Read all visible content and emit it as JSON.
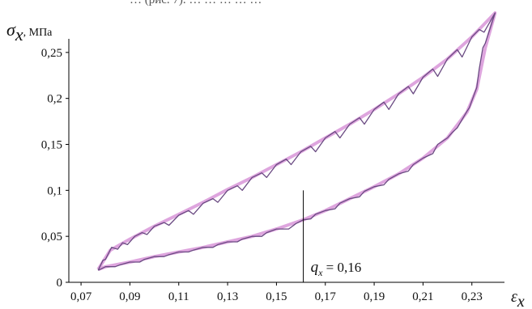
{
  "header_fragment": "… (рис. 7). … … … … …",
  "chart_data": {
    "type": "line",
    "title": "",
    "ylabel_symbol": "σ",
    "ylabel_sub": "x",
    "ylabel_unit": ", МПа",
    "xlabel_symbol": "ε",
    "xlabel_sub": "x",
    "xlim": [
      0.065,
      0.245
    ],
    "ylim": [
      0,
      0.3
    ],
    "x_ticks": [
      "0,07",
      "0,09",
      "0,11",
      "0,13",
      "0,15",
      "0,17",
      "0,19",
      "0,21",
      "0,23"
    ],
    "x_tick_values": [
      0.07,
      0.09,
      0.11,
      0.13,
      0.15,
      0.17,
      0.19,
      0.21,
      0.23
    ],
    "y_ticks": [
      "0",
      "0,05",
      "0,1",
      "0,15",
      "0,2",
      "0,25"
    ],
    "y_tick_values": [
      0,
      0.05,
      0.1,
      0.15,
      0.2,
      0.25
    ],
    "grid": false,
    "annotation": {
      "x": 0.161,
      "y_top": 0.1,
      "symbol": "q",
      "sub": "x",
      "text": " = 0,16"
    },
    "series": [
      {
        "color": "#d895d8",
        "width": 4,
        "values": [
          [
            0.077,
            0.014
          ],
          [
            0.082,
            0.035
          ],
          [
            0.09,
            0.047
          ],
          [
            0.1,
            0.061
          ],
          [
            0.11,
            0.074
          ],
          [
            0.12,
            0.087
          ],
          [
            0.13,
            0.101
          ],
          [
            0.14,
            0.114
          ],
          [
            0.15,
            0.128
          ],
          [
            0.16,
            0.142
          ],
          [
            0.17,
            0.157
          ],
          [
            0.18,
            0.172
          ],
          [
            0.19,
            0.188
          ],
          [
            0.2,
            0.205
          ],
          [
            0.21,
            0.223
          ],
          [
            0.22,
            0.243
          ],
          [
            0.23,
            0.267
          ],
          [
            0.2395,
            0.293
          ],
          [
            0.2355,
            0.255
          ],
          [
            0.232,
            0.21
          ],
          [
            0.228,
            0.185
          ],
          [
            0.22,
            0.157
          ],
          [
            0.21,
            0.135
          ],
          [
            0.2,
            0.118
          ],
          [
            0.19,
            0.104
          ],
          [
            0.18,
            0.091
          ],
          [
            0.17,
            0.078
          ],
          [
            0.161,
            0.068
          ],
          [
            0.15,
            0.058
          ],
          [
            0.14,
            0.05
          ],
          [
            0.13,
            0.044
          ],
          [
            0.12,
            0.038
          ],
          [
            0.11,
            0.033
          ],
          [
            0.1,
            0.028
          ],
          [
            0.09,
            0.022
          ],
          [
            0.08,
            0.017
          ],
          [
            0.077,
            0.014
          ]
        ]
      },
      {
        "color": "#6a4a82",
        "width": 1.3,
        "values": [
          [
            0.077,
            0.013
          ],
          [
            0.079,
            0.024
          ],
          [
            0.08,
            0.025
          ],
          [
            0.0825,
            0.038
          ],
          [
            0.085,
            0.036
          ],
          [
            0.087,
            0.043
          ],
          [
            0.089,
            0.041
          ],
          [
            0.092,
            0.05
          ],
          [
            0.095,
            0.054
          ],
          [
            0.097,
            0.052
          ],
          [
            0.1,
            0.061
          ],
          [
            0.104,
            0.065
          ],
          [
            0.106,
            0.062
          ],
          [
            0.11,
            0.073
          ],
          [
            0.114,
            0.078
          ],
          [
            0.116,
            0.074
          ],
          [
            0.12,
            0.086
          ],
          [
            0.124,
            0.091
          ],
          [
            0.126,
            0.087
          ],
          [
            0.13,
            0.1
          ],
          [
            0.134,
            0.105
          ],
          [
            0.136,
            0.1
          ],
          [
            0.14,
            0.114
          ],
          [
            0.144,
            0.119
          ],
          [
            0.146,
            0.114
          ],
          [
            0.15,
            0.128
          ],
          [
            0.154,
            0.134
          ],
          [
            0.156,
            0.128
          ],
          [
            0.16,
            0.142
          ],
          [
            0.164,
            0.148
          ],
          [
            0.166,
            0.142
          ],
          [
            0.17,
            0.157
          ],
          [
            0.174,
            0.164
          ],
          [
            0.176,
            0.157
          ],
          [
            0.18,
            0.172
          ],
          [
            0.184,
            0.179
          ],
          [
            0.186,
            0.172
          ],
          [
            0.19,
            0.188
          ],
          [
            0.194,
            0.196
          ],
          [
            0.196,
            0.188
          ],
          [
            0.2,
            0.205
          ],
          [
            0.204,
            0.213
          ],
          [
            0.206,
            0.205
          ],
          [
            0.21,
            0.223
          ],
          [
            0.214,
            0.232
          ],
          [
            0.216,
            0.224
          ],
          [
            0.22,
            0.243
          ],
          [
            0.224,
            0.253
          ],
          [
            0.226,
            0.245
          ],
          [
            0.23,
            0.267
          ],
          [
            0.233,
            0.275
          ],
          [
            0.235,
            0.272
          ],
          [
            0.2395,
            0.293
          ],
          [
            0.2355,
            0.26
          ],
          [
            0.2345,
            0.255
          ],
          [
            0.233,
            0.232
          ],
          [
            0.232,
            0.212
          ],
          [
            0.229,
            0.19
          ],
          [
            0.228,
            0.186
          ],
          [
            0.224,
            0.168
          ],
          [
            0.222,
            0.163
          ],
          [
            0.22,
            0.157
          ],
          [
            0.216,
            0.15
          ],
          [
            0.214,
            0.14
          ],
          [
            0.21,
            0.135
          ],
          [
            0.206,
            0.128
          ],
          [
            0.204,
            0.121
          ],
          [
            0.2,
            0.118
          ],
          [
            0.196,
            0.112
          ],
          [
            0.194,
            0.106
          ],
          [
            0.19,
            0.104
          ],
          [
            0.186,
            0.099
          ],
          [
            0.184,
            0.093
          ],
          [
            0.18,
            0.091
          ],
          [
            0.176,
            0.086
          ],
          [
            0.174,
            0.08
          ],
          [
            0.17,
            0.078
          ],
          [
            0.166,
            0.074
          ],
          [
            0.164,
            0.069
          ],
          [
            0.161,
            0.068
          ],
          [
            0.158,
            0.064
          ],
          [
            0.155,
            0.058
          ],
          [
            0.15,
            0.058
          ],
          [
            0.146,
            0.054
          ],
          [
            0.144,
            0.05
          ],
          [
            0.14,
            0.05
          ],
          [
            0.136,
            0.047
          ],
          [
            0.134,
            0.044
          ],
          [
            0.13,
            0.044
          ],
          [
            0.126,
            0.041
          ],
          [
            0.124,
            0.038
          ],
          [
            0.12,
            0.038
          ],
          [
            0.116,
            0.035
          ],
          [
            0.114,
            0.033
          ],
          [
            0.11,
            0.033
          ],
          [
            0.106,
            0.03
          ],
          [
            0.104,
            0.028
          ],
          [
            0.1,
            0.028
          ],
          [
            0.096,
            0.025
          ],
          [
            0.094,
            0.022
          ],
          [
            0.09,
            0.022
          ],
          [
            0.086,
            0.019
          ],
          [
            0.084,
            0.017
          ],
          [
            0.08,
            0.017
          ],
          [
            0.077,
            0.013
          ]
        ]
      }
    ]
  }
}
